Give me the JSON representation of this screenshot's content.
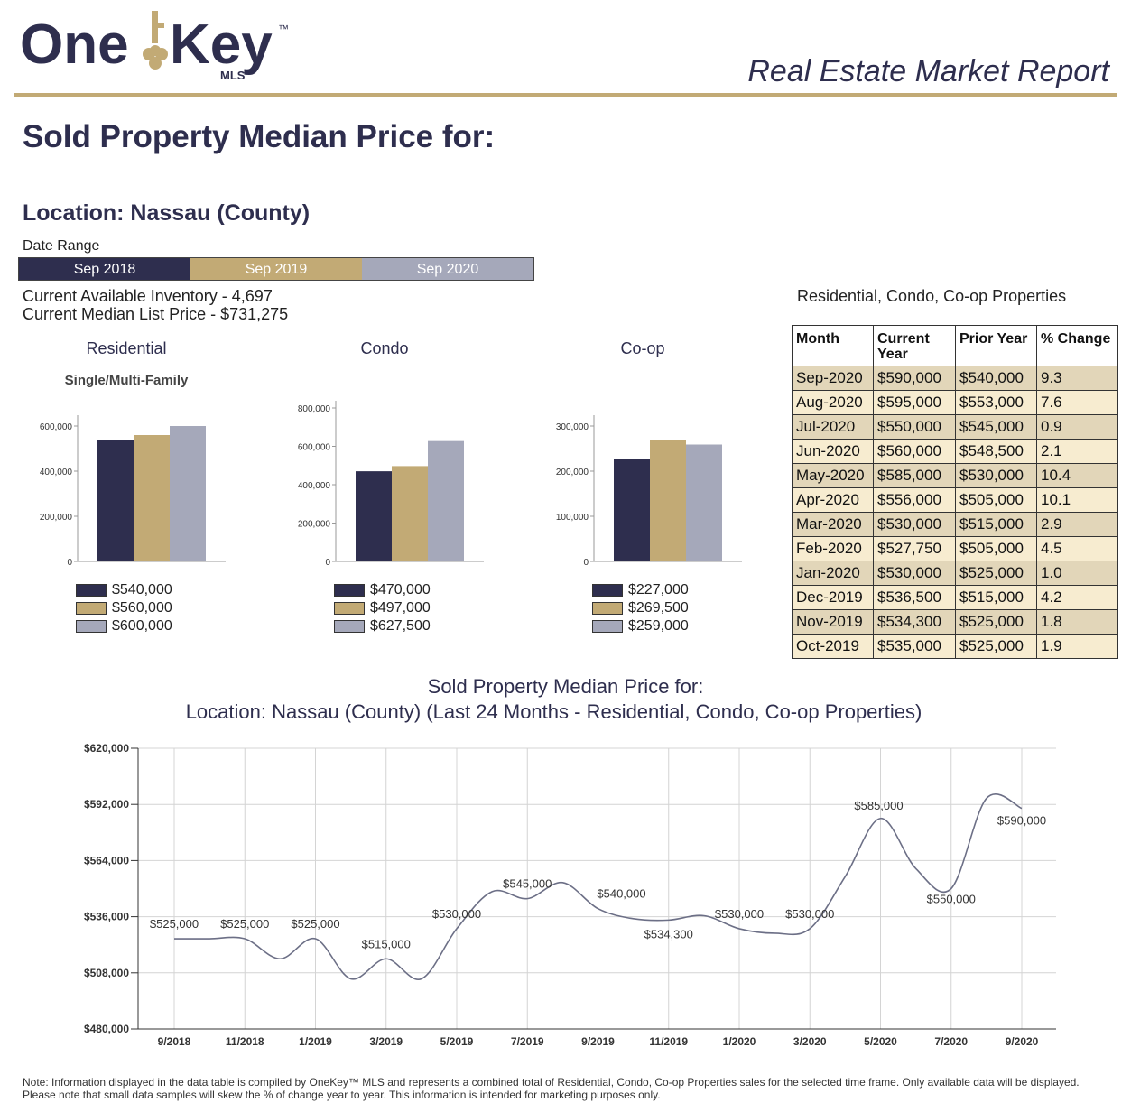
{
  "header": {
    "logo_word_one": "One",
    "logo_word_key": "Key",
    "logo_tm": "™",
    "logo_mls": "MLS",
    "report_title": "Real Estate Market Report"
  },
  "page_title": "Sold Property Median Price for:",
  "location": "Location: Nassau (County)",
  "date_range": {
    "label": "Date Range",
    "cells": [
      {
        "label": "Sep 2018",
        "color": "#2e2e4e"
      },
      {
        "label": "Sep 2019",
        "color": "#c2aa75"
      },
      {
        "label": "Sep 2020",
        "color": "#a5a8ba"
      }
    ]
  },
  "inventory_line": "Current Available Inventory - 4,697",
  "median_list_line": "Current Median List Price - $731,275",
  "colors": {
    "series_2018": "#2e2e4e",
    "series_2019": "#c2aa75",
    "series_2020": "#a5a8ba",
    "accent": "#c2aa75",
    "navy": "#2e2e4e"
  },
  "small_charts": [
    {
      "title": "Residential",
      "subtitle": "Single/Multi-Family",
      "chart_data": {
        "type": "bar",
        "ylim": [
          0,
          600000
        ],
        "yticks": [
          0,
          200000,
          400000,
          600000
        ],
        "ytick_labels": [
          "0",
          "200,000",
          "400,000",
          "600,000"
        ],
        "values": [
          540000,
          560000,
          600000
        ],
        "legend": [
          "$540,000",
          "$560,000",
          "$600,000"
        ]
      }
    },
    {
      "title": "Condo",
      "subtitle": "",
      "chart_data": {
        "type": "bar",
        "ylim": [
          0,
          800000
        ],
        "yticks": [
          0,
          200000,
          400000,
          600000,
          800000
        ],
        "ytick_labels": [
          "0",
          "200,000",
          "400,000",
          "600,000",
          "800,000"
        ],
        "values": [
          470000,
          497000,
          627500
        ],
        "legend": [
          "$470,000",
          "$497,000",
          "$627,500"
        ]
      }
    },
    {
      "title": "Co-op",
      "subtitle": "",
      "chart_data": {
        "type": "bar",
        "ylim": [
          0,
          300000
        ],
        "yticks": [
          0,
          100000,
          200000,
          300000
        ],
        "ytick_labels": [
          "0",
          "100,000",
          "200,000",
          "300,000"
        ],
        "values": [
          227000,
          269500,
          259000
        ],
        "legend": [
          "$227,000",
          "$269,500",
          "$259,000"
        ]
      }
    }
  ],
  "table": {
    "title": "Residential, Condo, Co-op Properties",
    "headers": [
      "Month",
      "Current Year",
      "Prior Year",
      "% Change"
    ],
    "rows": [
      [
        "Sep-2020",
        "$590,000",
        "$540,000",
        "9.3"
      ],
      [
        "Aug-2020",
        "$595,000",
        "$553,000",
        "7.6"
      ],
      [
        "Jul-2020",
        "$550,000",
        "$545,000",
        "0.9"
      ],
      [
        "Jun-2020",
        "$560,000",
        "$548,500",
        "2.1"
      ],
      [
        "May-2020",
        "$585,000",
        "$530,000",
        "10.4"
      ],
      [
        "Apr-2020",
        "$556,000",
        "$505,000",
        "10.1"
      ],
      [
        "Mar-2020",
        "$530,000",
        "$515,000",
        "2.9"
      ],
      [
        "Feb-2020",
        "$527,750",
        "$505,000",
        "4.5"
      ],
      [
        "Jan-2020",
        "$530,000",
        "$525,000",
        "1.0"
      ],
      [
        "Dec-2019",
        "$536,500",
        "$515,000",
        "4.2"
      ],
      [
        "Nov-2019",
        "$534,300",
        "$525,000",
        "1.8"
      ],
      [
        "Oct-2019",
        "$535,000",
        "$525,000",
        "1.9"
      ]
    ]
  },
  "line_chart": {
    "title_line1": "Sold Property Median Price for:",
    "title_line2": "Location: Nassau (County) (Last 24 Months - Residential, Condo, Co-op Properties)",
    "chart_data": {
      "type": "line",
      "x": [
        "9/2018",
        "10/2018",
        "11/2018",
        "12/2018",
        "1/2019",
        "2/2019",
        "3/2019",
        "4/2019",
        "5/2019",
        "6/2019",
        "7/2019",
        "8/2019",
        "9/2019",
        "10/2019",
        "11/2019",
        "12/2019",
        "1/2020",
        "2/2020",
        "3/2020",
        "4/2020",
        "5/2020",
        "6/2020",
        "7/2020",
        "8/2020",
        "9/2020"
      ],
      "values": [
        525000,
        525000,
        525000,
        515000,
        525000,
        505000,
        515000,
        505000,
        530000,
        548500,
        545000,
        553000,
        540000,
        535000,
        534300,
        536500,
        530000,
        527750,
        530000,
        556000,
        585000,
        560000,
        550000,
        595000,
        590000
      ],
      "xtick_labels": [
        "9/2018",
        "11/2018",
        "1/2019",
        "3/2019",
        "5/2019",
        "7/2019",
        "9/2019",
        "11/2019",
        "1/2020",
        "3/2020",
        "5/2020",
        "7/2020",
        "9/2020"
      ],
      "ylim": [
        480000,
        620000
      ],
      "yticks": [
        480000,
        508000,
        536000,
        564000,
        592000,
        620000
      ],
      "ytick_labels": [
        "$480,000",
        "$508,000",
        "$536,000",
        "$564,000",
        "$592,000",
        "$620,000"
      ],
      "data_labels": [
        {
          "x": "9/2018",
          "text": "$525,000"
        },
        {
          "x": "11/2018",
          "text": "$525,000"
        },
        {
          "x": "1/2019",
          "text": "$525,000"
        },
        {
          "x": "3/2019",
          "text": "$515,000"
        },
        {
          "x": "5/2019",
          "text": "$530,000"
        },
        {
          "x": "7/2019",
          "text": "$545,000"
        },
        {
          "x": "9/2019",
          "text": "$540,000"
        },
        {
          "x": "11/2019",
          "text": "$534,300"
        },
        {
          "x": "1/2020",
          "text": "$530,000"
        },
        {
          "x": "3/2020",
          "text": "$530,000"
        },
        {
          "x": "5/2020",
          "text": "$585,000"
        },
        {
          "x": "7/2020",
          "text": "$550,000"
        },
        {
          "x": "9/2020",
          "text": "$590,000"
        }
      ],
      "grid": true,
      "line_color": "#6c6f86"
    }
  },
  "footnote": "Note: Information displayed in the data table is compiled by OneKey™ MLS and represents a combined total of Residential, Condo, Co-op Properties sales for the selected time frame. Only available data will be displayed. Please note that small data samples will skew the % of change year to year. This information is intended for marketing purposes only."
}
